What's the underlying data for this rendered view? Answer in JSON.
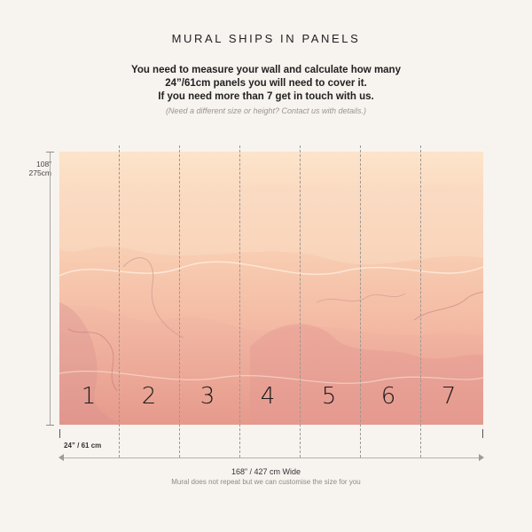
{
  "header": {
    "title": "MURAL SHIPS IN PANELS",
    "intro_lines": [
      "You need to measure your wall and calculate how many",
      "24”/61cm panels you will need to cover it.",
      "If you need more than 7 get in touch with us."
    ],
    "note": "(Need a different size or height? Contact us with details.)"
  },
  "dimensions": {
    "height_in": "108”",
    "height_cm": "275cm",
    "panel_width": "24” / 61 cm",
    "total_width": "168” / 427 cm Wide",
    "repeat_note": "Mural does not repeat but we can customise the size for you"
  },
  "panels": [
    "1",
    "2",
    "3",
    "4",
    "5",
    "6",
    "7"
  ],
  "colors": {
    "background": "#f7f3ef",
    "mural_top": "#fbe2c8",
    "mural_bottom": "#f0a494",
    "divider": "#9c9894"
  }
}
